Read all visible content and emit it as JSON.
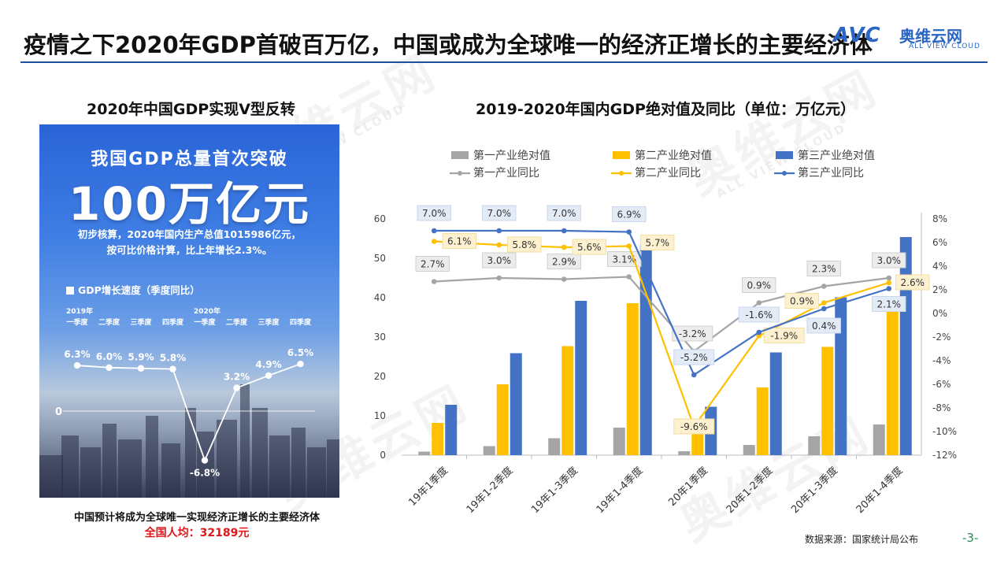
{
  "page": {
    "title": "疫情之下2020年GDP首破百万亿，中国或成为全球唯一的经济正增长的主要经济体",
    "logo_mark": "AVC",
    "logo_brand": "奥维云网",
    "logo_sub": "ALL VIEW CLOUD",
    "source": "数据来源：国家统计局公布",
    "page_number": "-3-"
  },
  "left_panel": {
    "title": "2020年中国GDP实现V型反转",
    "poster_header": "我国GDP总量首次突破",
    "poster_big": "100万亿元",
    "poster_desc_line1": "初步核算，2020年国内生产总值1015986亿元，",
    "poster_desc_line2": "按可比价格计算，比上年增长2.3%。",
    "legend": "GDP增长速度（季度同比）",
    "zero_label": "0",
    "year_2019": "2019年",
    "year_2020": "2020年",
    "quarters": [
      "一季度",
      "二季度",
      "三季度",
      "四季度",
      "一季度",
      "二季度",
      "三季度",
      "四季度"
    ],
    "growth": [
      6.3,
      6.0,
      5.9,
      5.8,
      -6.8,
      3.2,
      4.9,
      6.5
    ],
    "growth_labels": [
      "6.3%",
      "6.0%",
      "5.9%",
      "5.8%",
      "-6.8%",
      "3.2%",
      "4.9%",
      "6.5%"
    ],
    "note1": "中国预计将成为全球唯一实现经济正增长的主要经济体",
    "note2": "全国人均：32189元"
  },
  "chart_data": {
    "type": "bar+line",
    "title": "2019-2020年国内GDP绝对值及同比（单位：万亿元）",
    "categories": [
      "19年1季度",
      "19年1-2季度",
      "19年1-3季度",
      "19年1-4季度",
      "20年1季度",
      "20年1-2季度",
      "20年1-3季度",
      "20年1-4季度"
    ],
    "left_axis": {
      "range": [
        0,
        60
      ],
      "ticks": [
        0,
        10,
        20,
        30,
        40,
        50,
        60
      ]
    },
    "right_axis": {
      "range": [
        -12,
        8
      ],
      "ticks": [
        -12,
        -10,
        -8,
        -6,
        -4,
        -2,
        0,
        2,
        4,
        6,
        8
      ],
      "tick_labels": [
        "-12%",
        "-10%",
        "-8%",
        "-6%",
        "-4%",
        "-2%",
        "0%",
        "2%",
        "4%",
        "6%",
        "8%"
      ]
    },
    "bar_series": [
      {
        "name": "第一产业绝对值",
        "color": "#a5a5a5",
        "values": [
          0.9,
          2.3,
          4.3,
          7.0,
          1.0,
          2.6,
          4.8,
          7.8
        ]
      },
      {
        "name": "第二产业绝对值",
        "color": "#ffc000",
        "values": [
          8.2,
          18.0,
          27.7,
          38.6,
          7.4,
          17.2,
          27.5,
          38.4
        ]
      },
      {
        "name": "第三产业绝对值",
        "color": "#4472c4",
        "values": [
          12.8,
          25.9,
          39.2,
          53.4,
          12.3,
          26.1,
          40.1,
          55.4
        ]
      }
    ],
    "line_series": [
      {
        "name": "第一产业同比",
        "color": "#a5a5a5",
        "values": [
          2.7,
          3.0,
          2.9,
          3.1,
          -3.2,
          0.9,
          2.3,
          3.0
        ],
        "labels": [
          "2.7%",
          "3.0%",
          "2.9%",
          "3.1%",
          "-3.2%",
          "0.9%",
          "2.3%",
          "3.0%"
        ]
      },
      {
        "name": "第二产业同比",
        "color": "#ffc000",
        "values": [
          6.1,
          5.8,
          5.6,
          5.7,
          -9.6,
          -1.9,
          0.9,
          2.6
        ],
        "labels": [
          "6.1%",
          "5.8%",
          "5.6%",
          "5.7%",
          "-9.6%",
          "-1.9%",
          "0.9%",
          "2.6%"
        ]
      },
      {
        "name": "第三产业同比",
        "color": "#4472c4",
        "values": [
          7.0,
          7.0,
          7.0,
          6.9,
          -5.2,
          -1.6,
          0.4,
          2.1
        ],
        "labels": [
          "7.0%",
          "7.0%",
          "7.0%",
          "6.9%",
          "-5.2%",
          "-1.6%",
          "0.4%",
          "2.1%"
        ]
      }
    ],
    "legend": [
      "第一产业绝对值",
      "第二产业绝对值",
      "第三产业绝对值",
      "第一产业同比",
      "第二产业同比",
      "第三产业同比"
    ],
    "legend_position": "top"
  }
}
